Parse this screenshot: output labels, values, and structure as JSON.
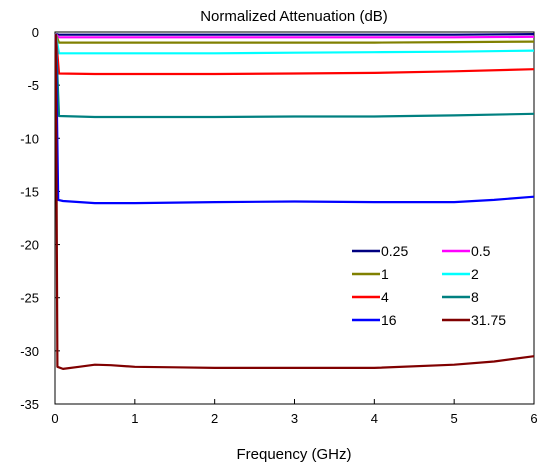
{
  "chart_data": {
    "type": "line",
    "title": "Normalized Attenuation (dB)",
    "xlabel": "Frequency (GHz)",
    "ylabel": "",
    "xlim": [
      0,
      6
    ],
    "ylim": [
      -35,
      0
    ],
    "x_ticks": [
      "0",
      "1",
      "2",
      "3",
      "4",
      "5",
      "6"
    ],
    "y_ticks": [
      "0",
      "-5",
      "-10",
      "-15",
      "-20",
      "-25",
      "-30",
      "-35"
    ],
    "grid": false,
    "legend_position": "lower-right",
    "series": [
      {
        "name": "0.25",
        "color": "#000080",
        "x": [
          0.01,
          0.05,
          1,
          2,
          3,
          4,
          5,
          6
        ],
        "y": [
          -0.2,
          -0.25,
          -0.25,
          -0.25,
          -0.25,
          -0.25,
          -0.25,
          -0.2
        ]
      },
      {
        "name": "0.5",
        "color": "#ff00ff",
        "x": [
          0.01,
          0.05,
          1,
          2,
          3,
          4,
          5,
          6
        ],
        "y": [
          -0.2,
          -0.5,
          -0.5,
          -0.5,
          -0.5,
          -0.5,
          -0.5,
          -0.45
        ]
      },
      {
        "name": "1",
        "color": "#808000",
        "x": [
          0.01,
          0.05,
          1,
          2,
          3,
          4,
          5,
          6
        ],
        "y": [
          -0.2,
          -1.0,
          -1.0,
          -1.0,
          -1.0,
          -1.0,
          -0.95,
          -0.9
        ]
      },
      {
        "name": "2",
        "color": "#00ffff",
        "x": [
          0.01,
          0.05,
          1,
          2,
          3,
          4,
          5,
          6
        ],
        "y": [
          -0.2,
          -2.0,
          -2.0,
          -2.0,
          -1.95,
          -1.9,
          -1.85,
          -1.75
        ]
      },
      {
        "name": "4",
        "color": "#ff0000",
        "x": [
          0.01,
          0.05,
          0.5,
          1,
          2,
          3,
          4,
          5,
          6
        ],
        "y": [
          -0.2,
          -3.9,
          -3.95,
          -3.95,
          -3.95,
          -3.9,
          -3.85,
          -3.7,
          -3.5
        ]
      },
      {
        "name": "8",
        "color": "#008080",
        "x": [
          0.01,
          0.05,
          0.5,
          1,
          2,
          3,
          4,
          5,
          6
        ],
        "y": [
          -0.2,
          -7.9,
          -8.0,
          -8.0,
          -8.0,
          -7.95,
          -7.95,
          -7.85,
          -7.7
        ]
      },
      {
        "name": "16",
        "color": "#0000ff",
        "x": [
          0.01,
          0.04,
          0.1,
          0.5,
          1,
          2,
          3,
          4,
          5,
          5.5,
          6
        ],
        "y": [
          -0.2,
          -15.8,
          -15.9,
          -16.1,
          -16.1,
          -16.0,
          -15.95,
          -16.0,
          -16.0,
          -15.8,
          -15.5
        ]
      },
      {
        "name": "31.75",
        "color": "#800000",
        "x": [
          0.01,
          0.03,
          0.1,
          0.3,
          0.5,
          0.7,
          1,
          1.5,
          2,
          3,
          4,
          5,
          5.5,
          6
        ],
        "y": [
          -0.2,
          -31.5,
          -31.7,
          -31.5,
          -31.3,
          -31.35,
          -31.5,
          -31.55,
          -31.6,
          -31.6,
          -31.6,
          -31.3,
          -31.0,
          -30.5
        ]
      }
    ]
  }
}
